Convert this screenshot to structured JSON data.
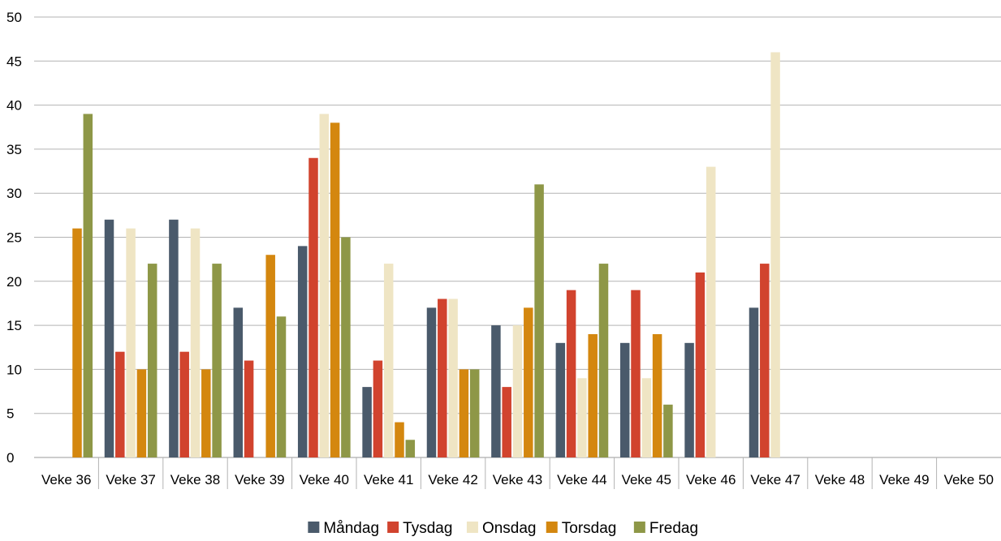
{
  "chart_data": {
    "type": "bar",
    "categories": [
      "Veke 36",
      "Veke 37",
      "Veke 38",
      "Veke 39",
      "Veke 40",
      "Veke 41",
      "Veke 42",
      "Veke 43",
      "Veke 44",
      "Veke 45",
      "Veke 46",
      "Veke 47",
      "Veke 48",
      "Veke 49",
      "Veke 50"
    ],
    "series": [
      {
        "name": "Måndag",
        "color": "#4a5a6b",
        "values": [
          null,
          27,
          27,
          17,
          24,
          8,
          17,
          15,
          13,
          13,
          13,
          17,
          null,
          null,
          null
        ]
      },
      {
        "name": "Tysdag",
        "color": "#d1432e",
        "values": [
          null,
          12,
          12,
          11,
          34,
          11,
          18,
          8,
          19,
          19,
          21,
          22,
          null,
          null,
          null
        ]
      },
      {
        "name": "Onsdag",
        "color": "#efe5c4",
        "values": [
          null,
          26,
          26,
          null,
          39,
          22,
          18,
          15,
          9,
          9,
          33,
          46,
          null,
          null,
          null
        ]
      },
      {
        "name": "Torsdag",
        "color": "#d4870f",
        "values": [
          26,
          10,
          10,
          23,
          38,
          4,
          10,
          17,
          14,
          14,
          null,
          null,
          null,
          null,
          null
        ]
      },
      {
        "name": "Fredag",
        "color": "#8e9747",
        "values": [
          39,
          22,
          22,
          16,
          25,
          2,
          10,
          31,
          22,
          6,
          null,
          null,
          null,
          null,
          null
        ]
      }
    ],
    "y_ticks": [
      "0",
      "5",
      "10",
      "15",
      "20",
      "25",
      "30",
      "35",
      "40",
      "45",
      "50"
    ],
    "ylim": [
      0,
      50
    ],
    "grid": true,
    "legend_position": "bottom"
  }
}
